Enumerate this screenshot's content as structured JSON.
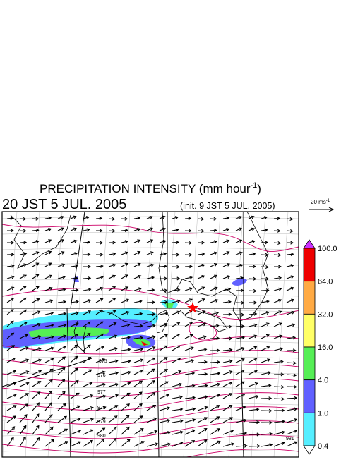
{
  "title": {
    "main": "PRECIPITATION INTENSITY (mm hour",
    "superscript": "-1",
    "close": ")"
  },
  "valid_time": "20 JST 5 JUL. 2005",
  "init_time": "(init. 9 JST 5 JUL. 2005)",
  "vector_scale": {
    "label": "20 ms",
    "superscript": "-1"
  },
  "colorbar": {
    "labels": [
      "100.0",
      "64.0",
      "32.0",
      "16.0",
      "4.0",
      "1.0",
      "0.4"
    ],
    "colors": [
      "#cc33ff",
      "#ee0000",
      "#ffaa44",
      "#ffff66",
      "#55ee55",
      "#6060ff",
      "#55eeff",
      "#ffffff"
    ]
  },
  "isobar_labels": [
    "975",
    "976",
    "977",
    "978",
    "979",
    "980",
    "981"
  ]
}
